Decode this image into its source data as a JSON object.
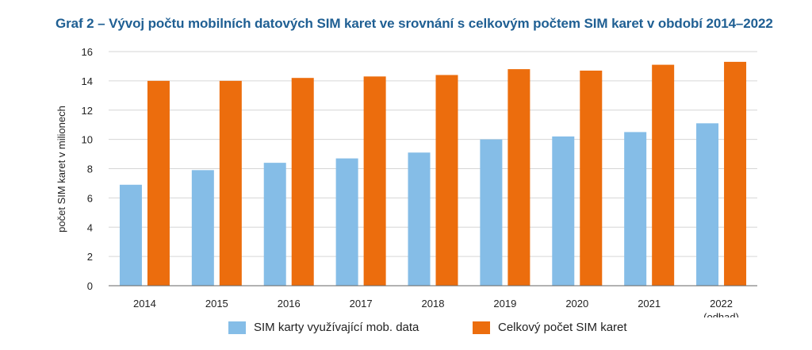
{
  "chart_data": {
    "type": "bar",
    "title": "Graf 2 – Vývoj počtu mobilních datových SIM karet ve srovnání s celkovým počtem SIM karet v období 2014–2022",
    "ylabel": "počet SIM karet v milionech",
    "xlabel": "",
    "ylim": [
      0,
      16
    ],
    "yticks": [
      0,
      2,
      4,
      6,
      8,
      10,
      12,
      14,
      16
    ],
    "grid": true,
    "legend_position": "bottom",
    "categories": [
      "2014",
      "2015",
      "2016",
      "2017",
      "2018",
      "2019",
      "2020",
      "2021",
      "2022"
    ],
    "category_sublabels": [
      "",
      "",
      "",
      "",
      "",
      "",
      "",
      "",
      "(odhad)"
    ],
    "series": [
      {
        "name": "SIM karty využívající mob. data",
        "color": "#85bde7",
        "values": [
          6.9,
          7.9,
          8.4,
          8.7,
          9.1,
          10.0,
          10.2,
          10.5,
          11.1
        ]
      },
      {
        "name": "Celkový počet SIM karet",
        "color": "#ec6d0d",
        "values": [
          14.0,
          14.0,
          14.2,
          14.3,
          14.4,
          14.8,
          14.7,
          15.1,
          15.3
        ]
      }
    ]
  }
}
